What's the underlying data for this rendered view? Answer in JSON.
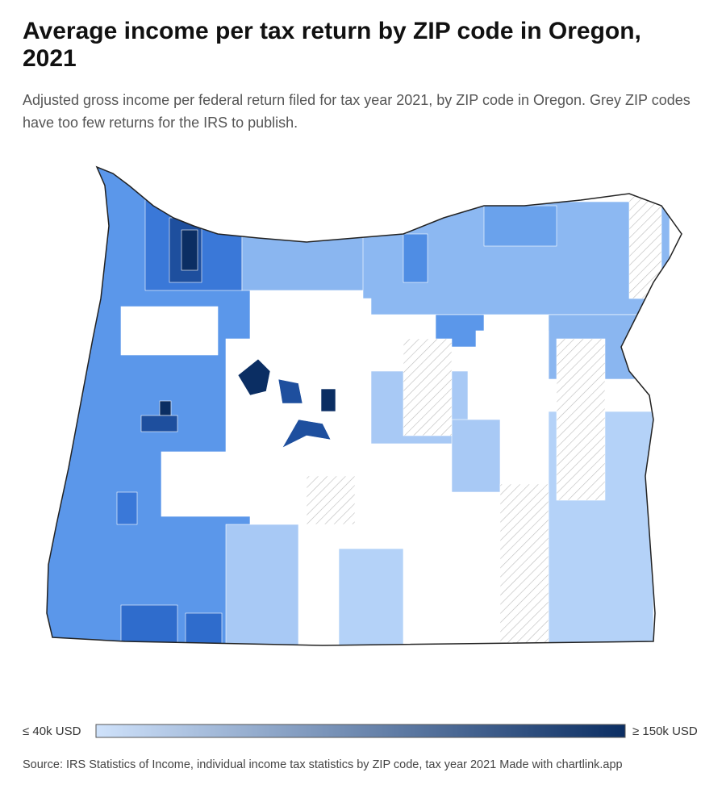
{
  "header": {
    "title": "Average income per tax return by ZIP code in Oregon, 2021",
    "subtitle": "Adjusted gross income per federal return filed for tax year 2021, by ZIP code in Oregon. Grey ZIP codes have too few returns for the IRS to publish."
  },
  "legend": {
    "min_label": "≤ 40k USD",
    "max_label": "≥ 150k USD",
    "colors": [
      "#cfe2fb",
      "#0b2e63"
    ]
  },
  "footer": {
    "source": "Source: IRS Statistics of Income, individual income tax statistics by ZIP code, tax year 2021 Made with chartlink.app"
  }
}
